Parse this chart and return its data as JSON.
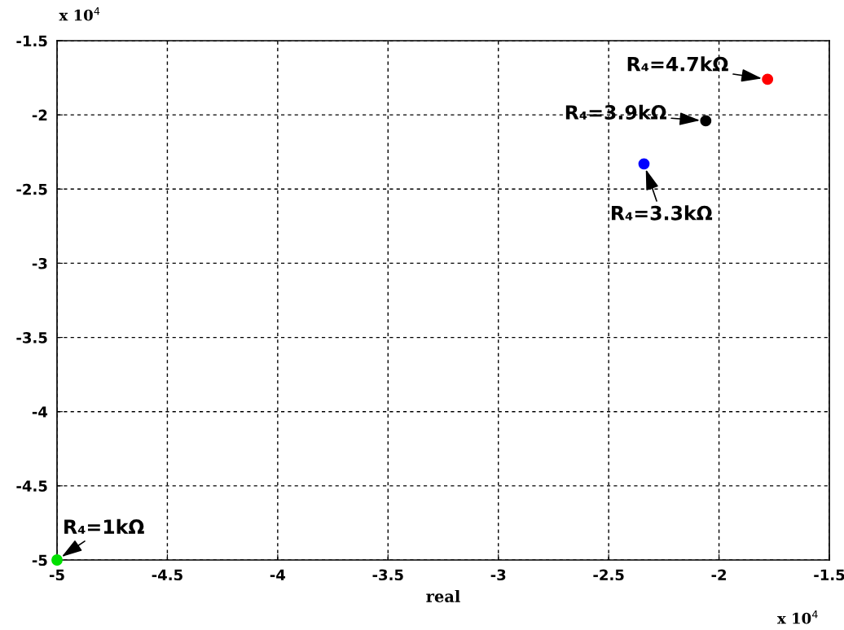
{
  "chart_data": {
    "type": "scatter",
    "xlabel": "real",
    "x": [
      -1.78,
      -2.06,
      -2.34,
      -5.0
    ],
    "series": [
      {
        "colors": [
          "#ff0000",
          "#000000",
          "#0000ff",
          "#00e000"
        ],
        "values": [
          -1.76,
          -2.04,
          -2.33,
          -5.0
        ]
      }
    ],
    "xlim": [
      -5,
      -1.5
    ],
    "xticks": [
      -5,
      -4.5,
      -4,
      -3.5,
      -3,
      -2.5,
      -2,
      -1.5
    ],
    "ylim": [
      -5,
      -1.5
    ],
    "yticks": [
      -5,
      -4.5,
      -4,
      -3.5,
      -3,
      -2.5,
      -2,
      -1.5
    ],
    "grid": true,
    "marker": "circle",
    "annotations": [
      {
        "text": "R₄=4.7kΩ",
        "x": -1.78,
        "y": -1.76
      },
      {
        "text": "R₄=3.9kΩ",
        "x": -2.06,
        "y": -2.04
      },
      {
        "text": "R₄=3.3kΩ",
        "x": -2.34,
        "y": -2.33
      },
      {
        "text": "R₄=1kΩ",
        "x": -5.0,
        "y": -5.0
      },
      "x 10$^{4}$",
      "x 10$^{4}$"
    ]
  }
}
